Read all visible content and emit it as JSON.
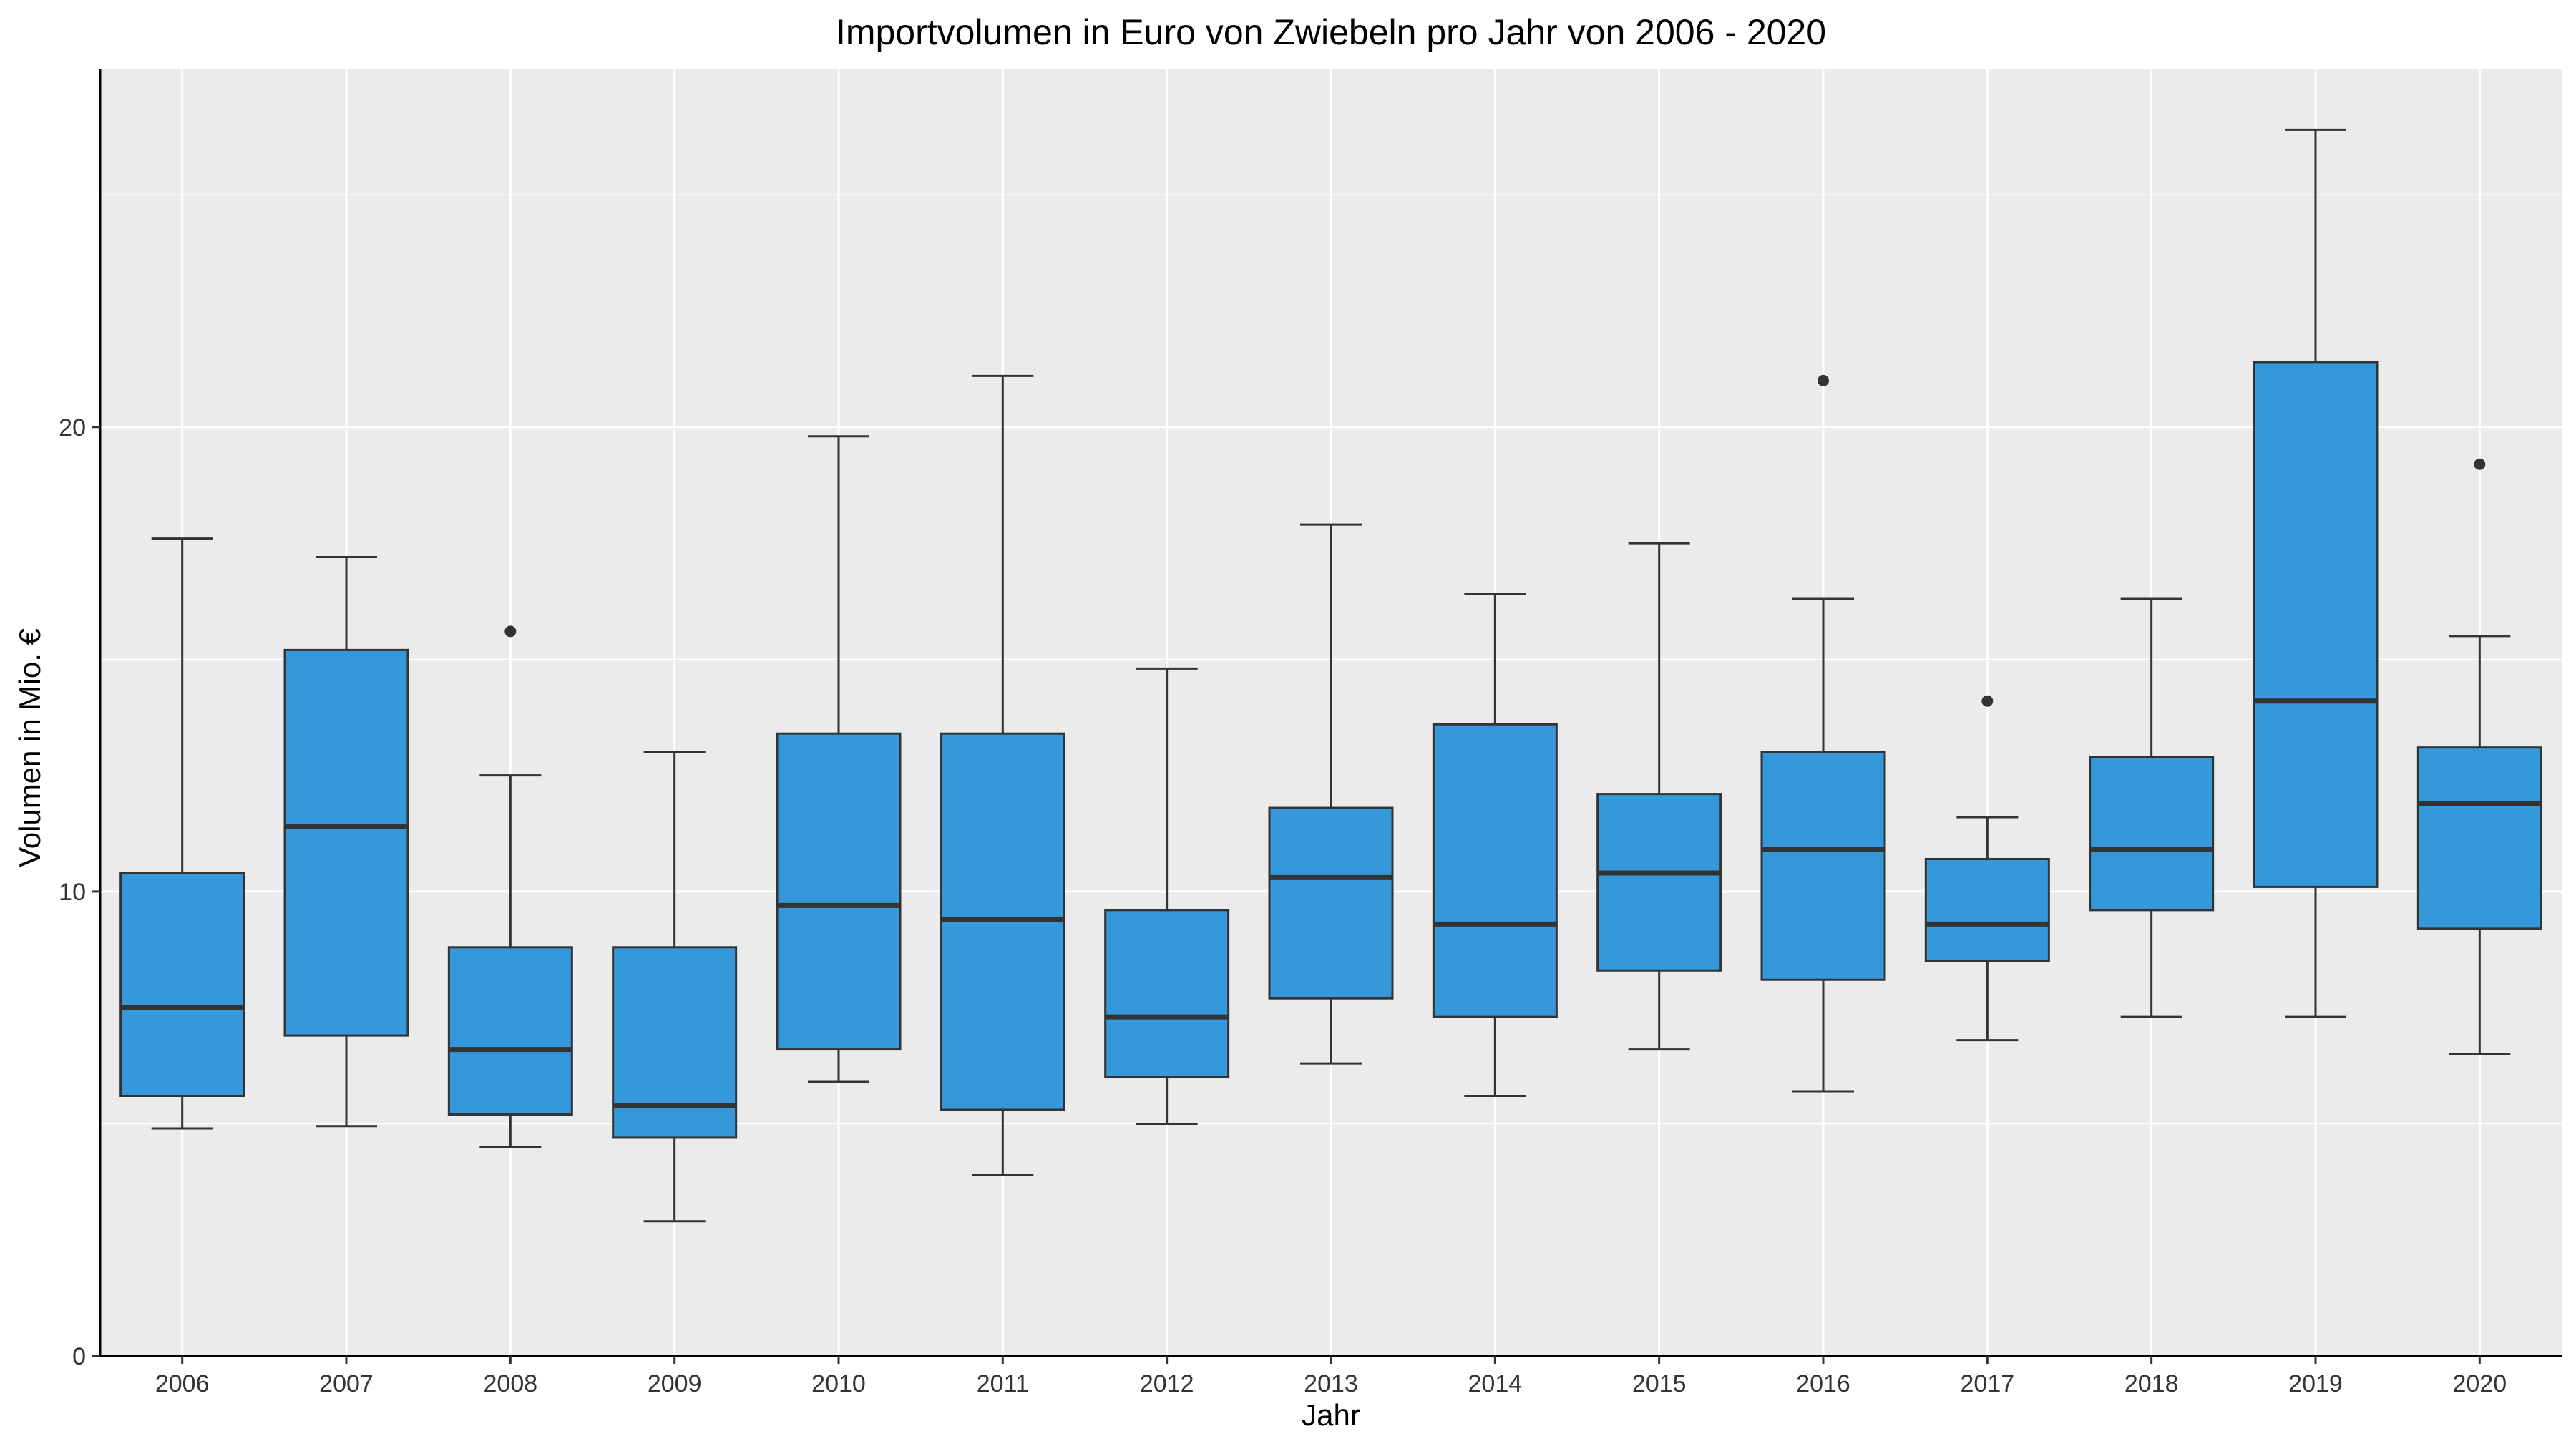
{
  "chart_data": {
    "type": "boxplot",
    "title": "Importvolumen in Euro von Zwiebeln pro Jahr von 2006 - 2020",
    "xlabel": "Jahr",
    "ylabel": "Volumen in Mio. €",
    "ylim": [
      0,
      27.7
    ],
    "yticks": [
      0,
      10,
      20
    ],
    "grid": true,
    "legend": "none",
    "colors": {
      "box_fill": "#3498db",
      "panel": "#ebebeb",
      "grid": "#ffffff",
      "line": "#333333"
    },
    "categories": [
      "2006",
      "2007",
      "2008",
      "2009",
      "2010",
      "2011",
      "2012",
      "2013",
      "2014",
      "2015",
      "2016",
      "2017",
      "2018",
      "2019",
      "2020"
    ],
    "boxes": [
      {
        "x": "2006",
        "min": 4.9,
        "q1": 5.6,
        "median": 7.5,
        "q3": 10.4,
        "max": 17.6,
        "outliers": []
      },
      {
        "x": "2007",
        "min": 4.95,
        "q1": 6.9,
        "median": 11.4,
        "q3": 15.2,
        "max": 17.2,
        "outliers": []
      },
      {
        "x": "2008",
        "min": 4.5,
        "q1": 5.2,
        "median": 6.6,
        "q3": 8.8,
        "max": 12.5,
        "outliers": [
          15.6
        ]
      },
      {
        "x": "2009",
        "min": 2.9,
        "q1": 4.7,
        "median": 5.4,
        "q3": 8.8,
        "max": 13.0,
        "outliers": []
      },
      {
        "x": "2010",
        "min": 5.9,
        "q1": 6.6,
        "median": 9.7,
        "q3": 13.4,
        "max": 19.8,
        "outliers": []
      },
      {
        "x": "2011",
        "min": 3.9,
        "q1": 5.3,
        "median": 9.4,
        "q3": 13.4,
        "max": 21.1,
        "outliers": []
      },
      {
        "x": "2012",
        "min": 5.0,
        "q1": 6.0,
        "median": 7.3,
        "q3": 9.6,
        "max": 14.8,
        "outliers": []
      },
      {
        "x": "2013",
        "min": 6.3,
        "q1": 7.7,
        "median": 10.3,
        "q3": 11.8,
        "max": 17.9,
        "outliers": []
      },
      {
        "x": "2014",
        "min": 5.6,
        "q1": 7.3,
        "median": 9.3,
        "q3": 13.6,
        "max": 16.4,
        "outliers": []
      },
      {
        "x": "2015",
        "min": 6.6,
        "q1": 8.3,
        "median": 10.4,
        "q3": 12.1,
        "max": 17.5,
        "outliers": []
      },
      {
        "x": "2016",
        "min": 5.7,
        "q1": 8.1,
        "median": 10.9,
        "q3": 13.0,
        "max": 16.3,
        "outliers": [
          21.0
        ]
      },
      {
        "x": "2017",
        "min": 6.8,
        "q1": 8.5,
        "median": 9.3,
        "q3": 10.7,
        "max": 11.6,
        "outliers": [
          14.1
        ]
      },
      {
        "x": "2018",
        "min": 7.3,
        "q1": 9.6,
        "median": 10.9,
        "q3": 12.9,
        "max": 16.3,
        "outliers": []
      },
      {
        "x": "2019",
        "min": 7.3,
        "q1": 10.1,
        "median": 14.1,
        "q3": 21.4,
        "max": 26.4,
        "outliers": []
      },
      {
        "x": "2020",
        "min": 6.5,
        "q1": 9.2,
        "median": 11.9,
        "q3": 13.1,
        "max": 15.5,
        "outliers": [
          19.2
        ]
      }
    ]
  }
}
